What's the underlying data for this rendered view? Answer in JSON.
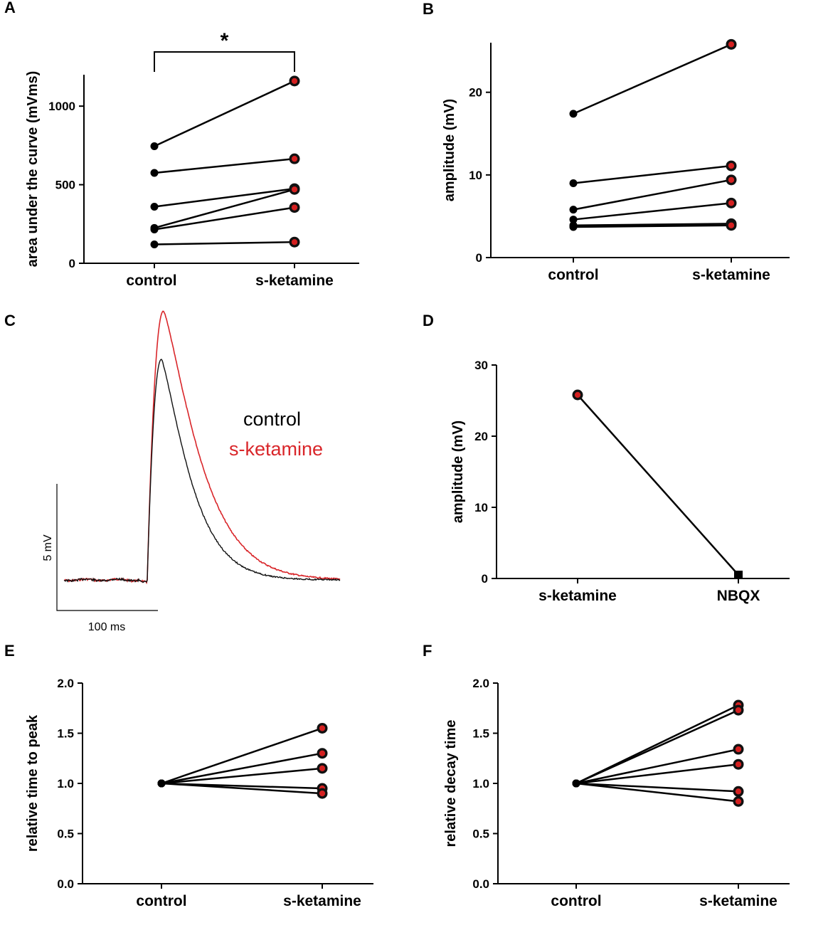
{
  "colors": {
    "control": "#000000",
    "ketamine_fill": "#d42020",
    "ketamine_ring": "#111111",
    "trace_red": "#d9262a",
    "trace_black": "#111111"
  },
  "chart_data": [
    {
      "panel": "A",
      "type": "paired-dot",
      "categories": [
        "control",
        "s-ketamine"
      ],
      "ylabel": "area under the curve (mVms)",
      "ylim": [
        0,
        1200
      ],
      "yticks": [
        0,
        500,
        1000
      ],
      "pairs": [
        [
          745,
          1160
        ],
        [
          575,
          665
        ],
        [
          360,
          475
        ],
        [
          225,
          470
        ],
        [
          215,
          355
        ],
        [
          120,
          135
        ]
      ],
      "significance": "*"
    },
    {
      "panel": "B",
      "type": "paired-dot",
      "categories": [
        "control",
        "s-ketamine"
      ],
      "ylabel": "amplitude (mV)",
      "ylim": [
        0,
        26
      ],
      "yticks": [
        0,
        10,
        20
      ],
      "pairs": [
        [
          17.4,
          25.8
        ],
        [
          9.0,
          11.1
        ],
        [
          5.8,
          9.4
        ],
        [
          4.6,
          6.6
        ],
        [
          3.9,
          4.1
        ],
        [
          3.7,
          3.9
        ]
      ]
    },
    {
      "panel": "C",
      "type": "line",
      "legend": [
        "control",
        "s-ketamine"
      ],
      "scalebar_y": "5 mV",
      "scalebar_x": "100 ms"
    },
    {
      "panel": "D",
      "type": "paired-dot",
      "categories": [
        "s-ketamine",
        "NBQX"
      ],
      "ylabel": "amplitude (mV)",
      "ylim": [
        0,
        30
      ],
      "yticks": [
        0,
        10,
        20,
        30
      ],
      "pairs": [
        [
          25.8,
          0.5
        ]
      ]
    },
    {
      "panel": "E",
      "type": "paired-dot",
      "categories": [
        "control",
        "s-ketamine"
      ],
      "ylabel": "relative time to peak",
      "ylim": [
        0,
        2
      ],
      "yticks": [
        "0.0",
        "0.5",
        "1.0",
        "1.5",
        "2.0"
      ],
      "pairs": [
        [
          1.0,
          1.55
        ],
        [
          1.0,
          1.3
        ],
        [
          1.0,
          1.15
        ],
        [
          1.0,
          0.95
        ],
        [
          1.0,
          0.9
        ]
      ]
    },
    {
      "panel": "F",
      "type": "paired-dot",
      "categories": [
        "control",
        "s-ketamine"
      ],
      "ylabel": "relative decay time",
      "ylim": [
        0,
        2
      ],
      "yticks": [
        "0.0",
        "0.5",
        "1.0",
        "1.5",
        "2.0"
      ],
      "pairs": [
        [
          1.0,
          1.78
        ],
        [
          1.0,
          1.73
        ],
        [
          1.0,
          1.34
        ],
        [
          1.0,
          1.19
        ],
        [
          1.0,
          0.92
        ],
        [
          1.0,
          0.82
        ]
      ]
    }
  ]
}
